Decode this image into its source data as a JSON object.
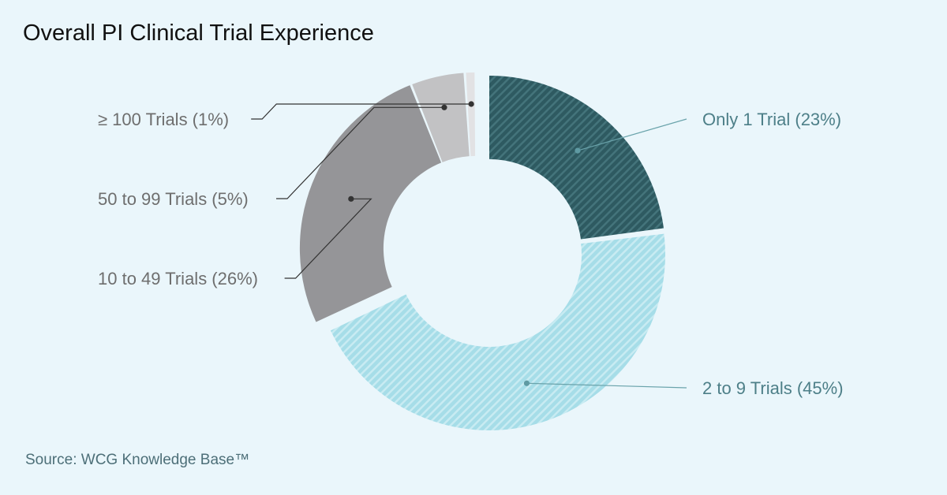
{
  "title": "Overall PI Clinical Trial Experience",
  "source": "Source: WCG Knowledge Base™",
  "chart_data": {
    "type": "pie",
    "style": "donut",
    "title": "Overall PI Clinical Trial Experience",
    "slices": [
      {
        "label": "Only 1 Trial (23%)",
        "value": 23,
        "color": "#2e5a61",
        "pattern": "hatch",
        "exploded": true
      },
      {
        "label": "2 to 9 Trials (45%)",
        "value": 45,
        "color": "#a6dde8",
        "pattern": "hatch",
        "exploded": false
      },
      {
        "label": "10 to 49 Trials (26%)",
        "value": 26,
        "color": "#959598",
        "pattern": "solid",
        "exploded": true
      },
      {
        "label": "50 to 99 Trials (5%)",
        "value": 5,
        "color": "#c2c2c4",
        "pattern": "solid",
        "exploded": true
      },
      {
        "label": "≥ 100 Trials (1%)",
        "value": 1,
        "color": "#e2e2e4",
        "pattern": "solid",
        "exploded": true
      }
    ]
  }
}
